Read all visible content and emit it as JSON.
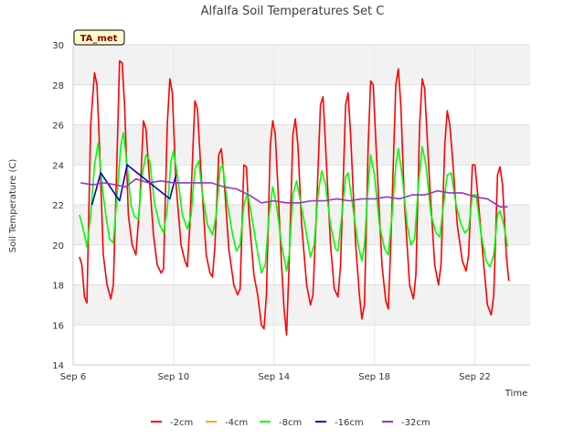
{
  "chart_data": {
    "type": "line",
    "title": "Alfalfa Soil Temperatures Set C",
    "xlabel": "Time",
    "ylabel": "Soil Temperature (C)",
    "badge": "TA_met",
    "ylim": [
      14,
      30
    ],
    "xlim": [
      0,
      18.2
    ],
    "x_unit": "days since Sep 6",
    "yticks": [
      14,
      16,
      18,
      20,
      22,
      24,
      26,
      28,
      30
    ],
    "xticks": [
      {
        "x": 0,
        "label": "Sep 6"
      },
      {
        "x": 4,
        "label": "Sep 10"
      },
      {
        "x": 8,
        "label": "Sep 14"
      },
      {
        "x": 12,
        "label": "Sep 18"
      },
      {
        "x": 16,
        "label": "Sep 22"
      }
    ],
    "grid": true,
    "legend_position": "bottom",
    "series": [
      {
        "name": "-2cm",
        "color": "#ff0000",
        "points": [
          [
            0.25,
            19.4
          ],
          [
            0.35,
            19.0
          ],
          [
            0.45,
            17.4
          ],
          [
            0.55,
            17.1
          ],
          [
            0.7,
            26.0
          ],
          [
            0.85,
            28.6
          ],
          [
            0.95,
            28.0
          ],
          [
            1.05,
            25.0
          ],
          [
            1.2,
            19.5
          ],
          [
            1.35,
            18.0
          ],
          [
            1.5,
            17.3
          ],
          [
            1.6,
            18.0
          ],
          [
            1.75,
            24.5
          ],
          [
            1.85,
            29.2
          ],
          [
            1.95,
            29.1
          ],
          [
            2.05,
            27.0
          ],
          [
            2.2,
            21.5
          ],
          [
            2.35,
            20.0
          ],
          [
            2.5,
            19.5
          ],
          [
            2.65,
            22.0
          ],
          [
            2.8,
            26.2
          ],
          [
            2.9,
            25.8
          ],
          [
            3.0,
            24.0
          ],
          [
            3.2,
            20.5
          ],
          [
            3.35,
            19.0
          ],
          [
            3.5,
            18.6
          ],
          [
            3.6,
            18.8
          ],
          [
            3.75,
            26.0
          ],
          [
            3.85,
            28.3
          ],
          [
            3.95,
            27.6
          ],
          [
            4.1,
            23.0
          ],
          [
            4.3,
            20.0
          ],
          [
            4.45,
            19.2
          ],
          [
            4.55,
            18.9
          ],
          [
            4.65,
            21.0
          ],
          [
            4.85,
            27.2
          ],
          [
            4.95,
            26.8
          ],
          [
            5.1,
            23.5
          ],
          [
            5.3,
            19.5
          ],
          [
            5.45,
            18.6
          ],
          [
            5.55,
            18.4
          ],
          [
            5.65,
            20.0
          ],
          [
            5.8,
            24.5
          ],
          [
            5.9,
            24.8
          ],
          [
            6.0,
            23.5
          ],
          [
            6.2,
            19.8
          ],
          [
            6.4,
            18.0
          ],
          [
            6.55,
            17.5
          ],
          [
            6.65,
            17.8
          ],
          [
            6.8,
            24.0
          ],
          [
            6.9,
            23.9
          ],
          [
            7.0,
            21.5
          ],
          [
            7.2,
            18.5
          ],
          [
            7.35,
            17.5
          ],
          [
            7.5,
            16.0
          ],
          [
            7.6,
            15.8
          ],
          [
            7.7,
            17.5
          ],
          [
            7.85,
            25.0
          ],
          [
            7.95,
            26.2
          ],
          [
            8.05,
            25.5
          ],
          [
            8.15,
            23.0
          ],
          [
            8.3,
            19.0
          ],
          [
            8.4,
            16.8
          ],
          [
            8.5,
            15.5
          ],
          [
            8.6,
            19.0
          ],
          [
            8.75,
            25.5
          ],
          [
            8.85,
            26.3
          ],
          [
            8.95,
            25.0
          ],
          [
            9.1,
            21.0
          ],
          [
            9.3,
            18.0
          ],
          [
            9.45,
            17.0
          ],
          [
            9.55,
            17.5
          ],
          [
            9.7,
            22.0
          ],
          [
            9.85,
            27.0
          ],
          [
            9.95,
            27.4
          ],
          [
            10.05,
            25.0
          ],
          [
            10.25,
            20.0
          ],
          [
            10.4,
            17.8
          ],
          [
            10.55,
            17.4
          ],
          [
            10.65,
            19.0
          ],
          [
            10.85,
            27.0
          ],
          [
            10.95,
            27.6
          ],
          [
            11.05,
            25.5
          ],
          [
            11.25,
            20.0
          ],
          [
            11.4,
            17.5
          ],
          [
            11.5,
            16.3
          ],
          [
            11.6,
            17.0
          ],
          [
            11.75,
            25.0
          ],
          [
            11.85,
            28.2
          ],
          [
            11.95,
            28.0
          ],
          [
            12.1,
            24.0
          ],
          [
            12.3,
            19.0
          ],
          [
            12.45,
            17.2
          ],
          [
            12.55,
            16.8
          ],
          [
            12.65,
            20.0
          ],
          [
            12.85,
            28.0
          ],
          [
            12.95,
            28.8
          ],
          [
            13.05,
            27.0
          ],
          [
            13.2,
            22.0
          ],
          [
            13.4,
            18.0
          ],
          [
            13.55,
            17.3
          ],
          [
            13.65,
            18.5
          ],
          [
            13.8,
            26.0
          ],
          [
            13.9,
            28.3
          ],
          [
            14.0,
            27.8
          ],
          [
            14.2,
            23.0
          ],
          [
            14.4,
            19.0
          ],
          [
            14.55,
            18.0
          ],
          [
            14.65,
            19.0
          ],
          [
            14.8,
            25.0
          ],
          [
            14.9,
            26.7
          ],
          [
            15.0,
            26.0
          ],
          [
            15.1,
            24.5
          ],
          [
            15.3,
            21.0
          ],
          [
            15.5,
            19.2
          ],
          [
            15.65,
            18.7
          ],
          [
            15.75,
            19.5
          ],
          [
            15.9,
            24.0
          ],
          [
            16.0,
            24.0
          ],
          [
            16.15,
            22.0
          ],
          [
            16.35,
            19.0
          ],
          [
            16.5,
            17.0
          ],
          [
            16.65,
            16.5
          ],
          [
            16.75,
            17.5
          ],
          [
            16.9,
            23.5
          ],
          [
            17.0,
            23.9
          ],
          [
            17.1,
            23.0
          ],
          [
            17.25,
            19.5
          ],
          [
            17.35,
            18.2
          ]
        ]
      },
      {
        "name": "-4cm",
        "color": "#ffa500",
        "points": []
      },
      {
        "name": "-8cm",
        "color": "#00ff00",
        "points": [
          [
            0.25,
            21.5
          ],
          [
            0.4,
            20.8
          ],
          [
            0.55,
            19.9
          ],
          [
            0.7,
            21.5
          ],
          [
            0.85,
            24.0
          ],
          [
            1.0,
            25.1
          ],
          [
            1.15,
            23.0
          ],
          [
            1.3,
            21.5
          ],
          [
            1.45,
            20.3
          ],
          [
            1.6,
            20.1
          ],
          [
            1.75,
            22.5
          ],
          [
            1.9,
            25.0
          ],
          [
            2.0,
            25.6
          ],
          [
            2.15,
            24.0
          ],
          [
            2.3,
            22.0
          ],
          [
            2.45,
            21.4
          ],
          [
            2.6,
            21.3
          ],
          [
            2.75,
            23.5
          ],
          [
            2.9,
            24.5
          ],
          [
            3.05,
            24.2
          ],
          [
            3.25,
            22.0
          ],
          [
            3.45,
            21.0
          ],
          [
            3.6,
            20.6
          ],
          [
            3.75,
            21.8
          ],
          [
            3.9,
            24.2
          ],
          [
            4.0,
            24.7
          ],
          [
            4.15,
            23.5
          ],
          [
            4.35,
            21.5
          ],
          [
            4.55,
            20.8
          ],
          [
            4.7,
            21.5
          ],
          [
            4.85,
            23.8
          ],
          [
            5.0,
            24.2
          ],
          [
            5.15,
            22.5
          ],
          [
            5.35,
            21.0
          ],
          [
            5.55,
            20.5
          ],
          [
            5.7,
            21.5
          ],
          [
            5.85,
            23.8
          ],
          [
            5.95,
            24.0
          ],
          [
            6.15,
            22.0
          ],
          [
            6.35,
            20.5
          ],
          [
            6.5,
            19.7
          ],
          [
            6.65,
            20.0
          ],
          [
            6.8,
            22.0
          ],
          [
            6.95,
            22.6
          ],
          [
            7.1,
            21.5
          ],
          [
            7.3,
            20.0
          ],
          [
            7.5,
            18.6
          ],
          [
            7.65,
            19.0
          ],
          [
            7.8,
            21.5
          ],
          [
            7.95,
            22.9
          ],
          [
            8.1,
            22.0
          ],
          [
            8.3,
            20.0
          ],
          [
            8.5,
            18.7
          ],
          [
            8.6,
            19.5
          ],
          [
            8.75,
            22.5
          ],
          [
            8.9,
            23.2
          ],
          [
            9.05,
            22.2
          ],
          [
            9.3,
            20.5
          ],
          [
            9.45,
            19.4
          ],
          [
            9.6,
            20.0
          ],
          [
            9.75,
            22.5
          ],
          [
            9.9,
            23.7
          ],
          [
            10.05,
            23.0
          ],
          [
            10.25,
            21.0
          ],
          [
            10.45,
            19.8
          ],
          [
            10.55,
            19.7
          ],
          [
            10.7,
            21.5
          ],
          [
            10.85,
            23.4
          ],
          [
            10.95,
            23.6
          ],
          [
            11.15,
            21.8
          ],
          [
            11.35,
            20.0
          ],
          [
            11.5,
            19.2
          ],
          [
            11.6,
            20.0
          ],
          [
            11.75,
            23.0
          ],
          [
            11.85,
            24.5
          ],
          [
            12.0,
            23.5
          ],
          [
            12.2,
            21.0
          ],
          [
            12.4,
            19.8
          ],
          [
            12.55,
            19.5
          ],
          [
            12.7,
            21.5
          ],
          [
            12.85,
            24.0
          ],
          [
            12.95,
            24.8
          ],
          [
            13.1,
            23.5
          ],
          [
            13.3,
            21.0
          ],
          [
            13.45,
            20.0
          ],
          [
            13.6,
            20.3
          ],
          [
            13.75,
            23.0
          ],
          [
            13.9,
            24.9
          ],
          [
            14.05,
            24.0
          ],
          [
            14.25,
            21.5
          ],
          [
            14.45,
            20.6
          ],
          [
            14.6,
            20.4
          ],
          [
            14.75,
            22.0
          ],
          [
            14.9,
            23.5
          ],
          [
            15.05,
            23.6
          ],
          [
            15.25,
            22.0
          ],
          [
            15.45,
            21.0
          ],
          [
            15.6,
            20.6
          ],
          [
            15.75,
            20.8
          ],
          [
            15.9,
            22.5
          ],
          [
            16.05,
            22.5
          ],
          [
            16.25,
            20.5
          ],
          [
            16.45,
            19.2
          ],
          [
            16.6,
            18.9
          ],
          [
            16.75,
            19.5
          ],
          [
            16.9,
            21.5
          ],
          [
            17.0,
            21.7
          ],
          [
            17.15,
            21.0
          ],
          [
            17.3,
            19.9
          ]
        ]
      },
      {
        "name": "-16cm",
        "color": "#0000cd",
        "points": [
          [
            0.75,
            22.0
          ],
          [
            1.1,
            23.6
          ],
          [
            1.85,
            22.2
          ],
          [
            2.15,
            24.0
          ],
          [
            3.85,
            22.3
          ],
          [
            4.1,
            23.5
          ]
        ]
      },
      {
        "name": "-32cm",
        "color": "#9932cc",
        "points": [
          [
            0.3,
            23.1
          ],
          [
            0.8,
            23.0
          ],
          [
            1.2,
            23.1
          ],
          [
            1.7,
            23.0
          ],
          [
            2.1,
            22.9
          ],
          [
            2.5,
            23.3
          ],
          [
            3.0,
            23.1
          ],
          [
            3.5,
            23.2
          ],
          [
            4.0,
            23.1
          ],
          [
            4.5,
            23.1
          ],
          [
            5.0,
            23.1
          ],
          [
            5.5,
            23.1
          ],
          [
            6.0,
            22.9
          ],
          [
            6.5,
            22.8
          ],
          [
            7.0,
            22.5
          ],
          [
            7.5,
            22.1
          ],
          [
            8.0,
            22.2
          ],
          [
            8.5,
            22.1
          ],
          [
            9.0,
            22.1
          ],
          [
            9.5,
            22.2
          ],
          [
            10.0,
            22.2
          ],
          [
            10.5,
            22.3
          ],
          [
            11.0,
            22.2
          ],
          [
            11.5,
            22.3
          ],
          [
            12.0,
            22.3
          ],
          [
            12.5,
            22.4
          ],
          [
            13.0,
            22.3
          ],
          [
            13.5,
            22.5
          ],
          [
            14.0,
            22.5
          ],
          [
            14.5,
            22.7
          ],
          [
            15.0,
            22.6
          ],
          [
            15.5,
            22.6
          ],
          [
            16.0,
            22.4
          ],
          [
            16.5,
            22.3
          ],
          [
            17.0,
            21.9
          ],
          [
            17.3,
            21.9
          ]
        ]
      }
    ]
  }
}
